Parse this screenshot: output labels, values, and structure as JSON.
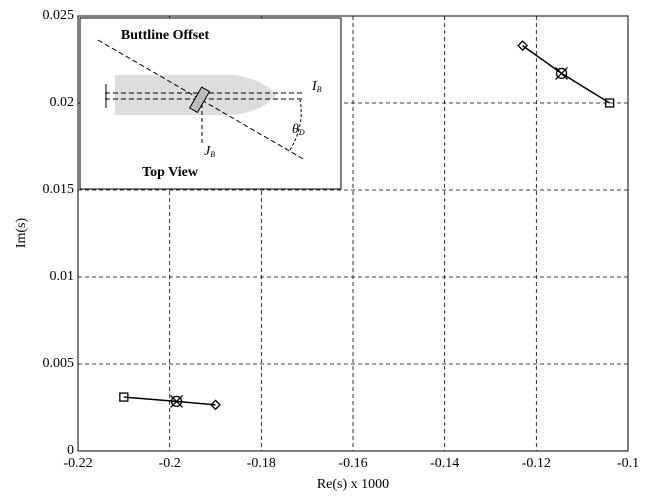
{
  "chart_data": {
    "type": "line",
    "xlabel": "Re(s) x 1000",
    "ylabel": "Im(s)",
    "xlim": [
      -0.22,
      -0.1
    ],
    "xticks": [
      -0.22,
      -0.2,
      -0.18,
      -0.16,
      -0.14,
      -0.12,
      -0.1
    ],
    "ylim": [
      0,
      0.025
    ],
    "yticks": [
      0,
      0.005,
      0.01,
      0.015,
      0.02,
      0.025
    ],
    "grid": true,
    "markers": [
      "square",
      "circle-x",
      "diamond"
    ],
    "series": [
      {
        "color": "#000000",
        "x": [
          -0.21,
          -0.1985,
          -0.19
        ],
        "values": [
          0.0031,
          0.00285,
          0.00265
        ]
      },
      {
        "color": "#000000",
        "x": [
          -0.104,
          -0.1145,
          -0.123
        ],
        "values": [
          0.02,
          0.0217,
          0.0233
        ]
      }
    ]
  },
  "inset": {
    "title": "Buttline Offset",
    "caption": "Top View",
    "labels": [
      {
        "symbol": "I",
        "subscript": "B"
      },
      {
        "symbol": "J",
        "subscript": "B"
      },
      {
        "symbol": "θ",
        "subscript": "D"
      }
    ]
  }
}
